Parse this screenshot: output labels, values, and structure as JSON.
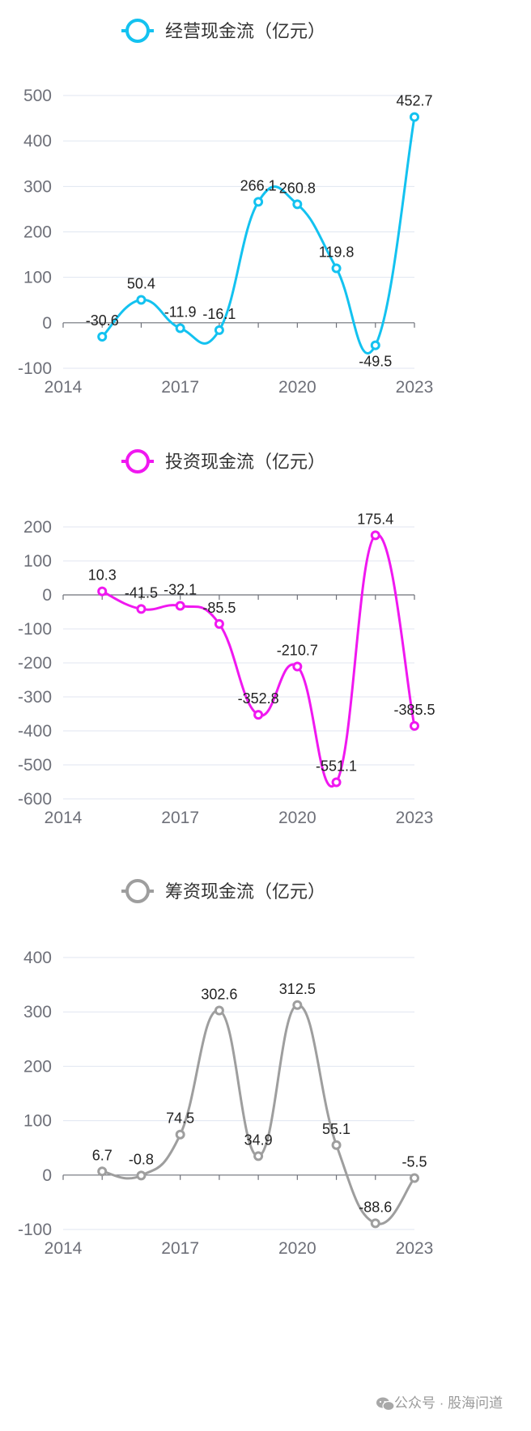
{
  "chart_data": [
    {
      "type": "line",
      "x": [
        2015,
        2016,
        2017,
        2018,
        2019,
        2020,
        2021,
        2022,
        2023
      ],
      "series": [
        {
          "name": "经营现金流（亿元）",
          "values": [
            -30.6,
            50.4,
            -11.9,
            -16.1,
            266.1,
            260.8,
            119.8,
            -49.5,
            452.7
          ]
        }
      ],
      "data_labels": [
        "-30.6",
        "50.4",
        "-11.9",
        "-16.1",
        "266.1",
        "260.8",
        "119.8",
        "-49.5",
        "452.7"
      ],
      "color": "#13c2f0",
      "xlim": [
        2014,
        2023
      ],
      "xticks": [
        "2014",
        "2017",
        "2020",
        "2023"
      ],
      "ylim": [
        -100,
        500
      ],
      "yticks": [
        "-100",
        "0",
        "100",
        "200",
        "300",
        "400",
        "500"
      ],
      "legend_placement": "top-center",
      "smooth": true,
      "grid": true
    },
    {
      "type": "line",
      "x": [
        2015,
        2016,
        2017,
        2018,
        2019,
        2020,
        2021,
        2022,
        2023
      ],
      "series": [
        {
          "name": "投资现金流（亿元）",
          "values": [
            10.3,
            -41.5,
            -32.1,
            -85.5,
            -352.8,
            -210.7,
            -551.1,
            175.4,
            -385.5
          ]
        }
      ],
      "data_labels": [
        "10.3",
        "-41.5",
        "-32.1",
        "-85.5",
        "-352.8",
        "-210.7",
        "-551.1",
        "175.4",
        "-385.5"
      ],
      "color": "#f018f0",
      "xlim": [
        2014,
        2023
      ],
      "xticks": [
        "2014",
        "2017",
        "2020",
        "2023"
      ],
      "ylim": [
        -600,
        200
      ],
      "yticks": [
        "-600",
        "-500",
        "-400",
        "-300",
        "-200",
        "-100",
        "0",
        "100",
        "200"
      ],
      "legend_placement": "top-center",
      "smooth": true,
      "grid": true
    },
    {
      "type": "line",
      "x": [
        2015,
        2016,
        2017,
        2018,
        2019,
        2020,
        2021,
        2022,
        2023
      ],
      "series": [
        {
          "name": "筹资现金流（亿元）",
          "values": [
            6.7,
            -0.8,
            74.5,
            302.6,
            34.9,
            312.5,
            55.1,
            -88.6,
            -5.5
          ]
        }
      ],
      "data_labels": [
        "6.7",
        "-0.8",
        "74.5",
        "302.6",
        "34.9",
        "312.5",
        "55.1",
        "-88.6",
        "-5.5"
      ],
      "color": "#9e9e9e",
      "xlim": [
        2014,
        2023
      ],
      "xticks": [
        "2014",
        "2017",
        "2020",
        "2023"
      ],
      "ylim": [
        -100,
        400
      ],
      "yticks": [
        "-100",
        "0",
        "100",
        "200",
        "300",
        "400"
      ],
      "legend_placement": "top-center",
      "smooth": true,
      "grid": true
    }
  ],
  "watermark": {
    "icon": "wechat-icon",
    "text": "公众号 · 股海问道"
  }
}
